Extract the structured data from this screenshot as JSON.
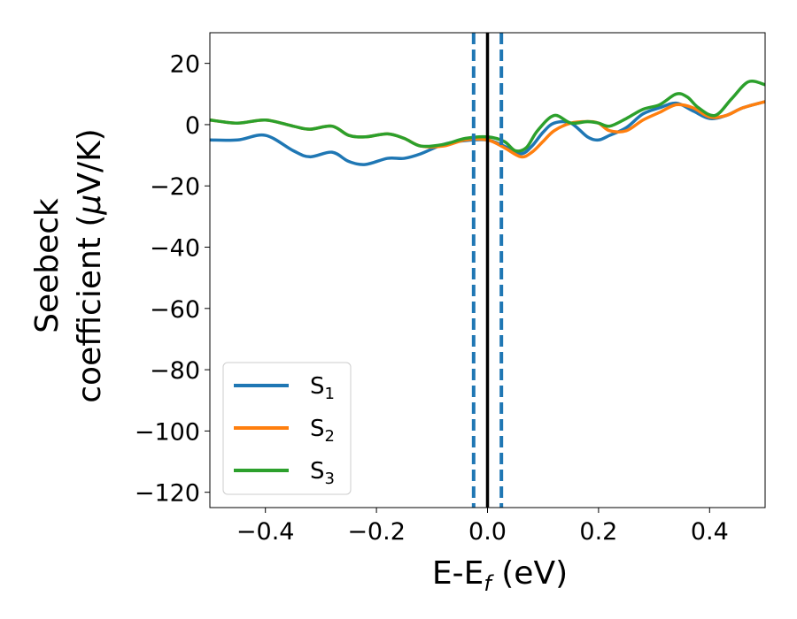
{
  "chart_data": {
    "type": "line",
    "xlabel_main": "E-E",
    "xlabel_sub": "f",
    "xlabel_unit": " (eV)",
    "ylabel_line1": "Seebeck",
    "ylabel_line2": "coefficient  (",
    "ylabel_mu": "μ",
    "ylabel_unit": "V/K)",
    "xlim": [
      -0.5,
      0.5
    ],
    "ylim": [
      -125,
      30
    ],
    "xticks": [
      -0.4,
      -0.2,
      0.0,
      0.2,
      0.4
    ],
    "xtick_labels": [
      "−0.4",
      "−0.2",
      "0.0",
      "0.2",
      "0.4"
    ],
    "yticks": [
      20,
      0,
      -20,
      -40,
      -60,
      -80,
      -100,
      -120
    ],
    "ytick_labels": [
      "20",
      "0",
      "−20",
      "−40",
      "−60",
      "−80",
      "−100",
      "−120"
    ],
    "grid": false,
    "legend_position": "lower-left",
    "vlines": [
      {
        "x": -0.025,
        "style": "dashed",
        "color": "#1f77b4"
      },
      {
        "x": 0.0,
        "style": "solid",
        "color": "#000000"
      },
      {
        "x": 0.025,
        "style": "dashed",
        "color": "#1f77b4"
      }
    ],
    "series": [
      {
        "name": "S",
        "subscript": "1",
        "color": "#1f77b4",
        "x": [
          -0.5,
          -0.45,
          -0.4,
          -0.35,
          -0.32,
          -0.28,
          -0.25,
          -0.22,
          -0.18,
          -0.15,
          -0.12,
          -0.08,
          -0.04,
          0.0,
          0.03,
          0.06,
          0.08,
          0.1,
          0.12,
          0.15,
          0.18,
          0.2,
          0.22,
          0.25,
          0.28,
          0.31,
          0.34,
          0.37,
          0.4,
          0.43,
          0.46,
          0.5
        ],
        "y": [
          -5,
          -5,
          -3.5,
          -8.5,
          -10.5,
          -9,
          -12,
          -13,
          -11,
          -11,
          -9.5,
          -6.5,
          -5.2,
          -5,
          -7,
          -9.5,
          -7,
          -2.5,
          0.5,
          0.5,
          -4,
          -5,
          -3.5,
          -1,
          3.5,
          5.5,
          7,
          4.5,
          2,
          3,
          5.5,
          7.5
        ]
      },
      {
        "name": "S",
        "subscript": "2",
        "color": "#ff7f0e",
        "x": [
          -0.5,
          -0.45,
          -0.4,
          -0.35,
          -0.32,
          -0.28,
          -0.25,
          -0.22,
          -0.18,
          -0.15,
          -0.12,
          -0.08,
          -0.04,
          0.0,
          0.03,
          0.06,
          0.08,
          0.1,
          0.12,
          0.15,
          0.18,
          0.2,
          0.22,
          0.25,
          0.28,
          0.31,
          0.34,
          0.37,
          0.4,
          0.43,
          0.46,
          0.5
        ],
        "y": [
          1.5,
          0.5,
          1.5,
          -0.5,
          -1.5,
          -0.5,
          -3.5,
          -4,
          -3,
          -4.5,
          -7,
          -7,
          -5,
          -5,
          -7.5,
          -10.5,
          -9,
          -5.5,
          -2,
          0.5,
          1,
          0.5,
          -2,
          -2,
          1.5,
          4,
          6.5,
          5.5,
          2.5,
          3,
          5.5,
          7.5
        ]
      },
      {
        "name": "S",
        "subscript": "3",
        "color": "#2ca02c",
        "x": [
          -0.5,
          -0.45,
          -0.4,
          -0.35,
          -0.32,
          -0.28,
          -0.25,
          -0.22,
          -0.18,
          -0.15,
          -0.12,
          -0.08,
          -0.04,
          0.0,
          0.03,
          0.05,
          0.07,
          0.09,
          0.12,
          0.15,
          0.18,
          0.2,
          0.22,
          0.25,
          0.28,
          0.31,
          0.34,
          0.36,
          0.38,
          0.41,
          0.44,
          0.47,
          0.5
        ],
        "y": [
          1.5,
          0.5,
          1.5,
          -0.5,
          -1.5,
          -0.5,
          -3.5,
          -4,
          -3,
          -4.5,
          -7,
          -6.5,
          -4.5,
          -4,
          -5.5,
          -8.5,
          -7.5,
          -2,
          3,
          0.5,
          1,
          0.5,
          -0.5,
          2,
          5,
          6.5,
          10,
          9,
          5.5,
          3,
          8.5,
          14,
          13
        ]
      }
    ]
  }
}
